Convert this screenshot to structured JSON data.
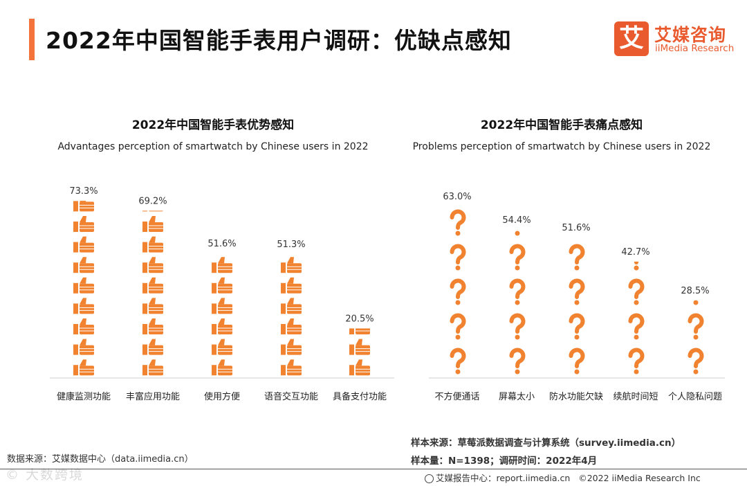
{
  "header": {
    "title": "2022年中国智能手表用户调研：优缺点感知"
  },
  "logo": {
    "mark": "艾",
    "cn": "艾媒咨询",
    "en": "iiMedia Research"
  },
  "colors": {
    "accent": "#f4733b",
    "bar": "#f08230",
    "axis": "#cccccc"
  },
  "chart_data": [
    {
      "type": "bar",
      "title": "2022年中国智能手表优势感知",
      "subtitle": "Advantages perception of smartwatch by Chinese users in 2022",
      "categories": [
        "健康监测功能",
        "丰富应用功能",
        "使用方便",
        "语音交互功能",
        "具备支付功能"
      ],
      "values": [
        73.3,
        69.2,
        51.6,
        51.3,
        20.5
      ],
      "value_labels": [
        "73.3%",
        "69.2%",
        "51.6%",
        "51.3%",
        "20.5%"
      ],
      "icon": "thumbs-up-icon",
      "ylim": [
        0,
        73.3
      ],
      "xlabel": "",
      "ylabel": ""
    },
    {
      "type": "bar",
      "title": "2022年中国智能手表痛点感知",
      "subtitle": "Problems perception of smartwatch by Chinese users in 2022",
      "categories": [
        "不方便通话",
        "屏幕太小",
        "防水功能欠缺",
        "续航时间短",
        "个人隐私问题"
      ],
      "values": [
        63.0,
        54.4,
        51.6,
        42.7,
        28.5
      ],
      "value_labels": [
        "63.0%",
        "54.4%",
        "51.6%",
        "42.7%",
        "28.5%"
      ],
      "icon": "question-mark-icon",
      "ylim": [
        0,
        63.0
      ],
      "xlabel": "",
      "ylabel": ""
    }
  ],
  "footer": {
    "source": "数据来源：艾媒数据中心（data.iimedia.cn）",
    "sample_source": "样本来源：草莓派数据调查与计算系统（survey.iimedia.cn）",
    "sample_size": "样本量：N=1398；调研时间：2022年4月",
    "report_center": "艾媒报告中心：report.iimedia.cn",
    "copyright": "©2022 iiMedia Research Inc",
    "watermark": "© 大数跨境"
  }
}
